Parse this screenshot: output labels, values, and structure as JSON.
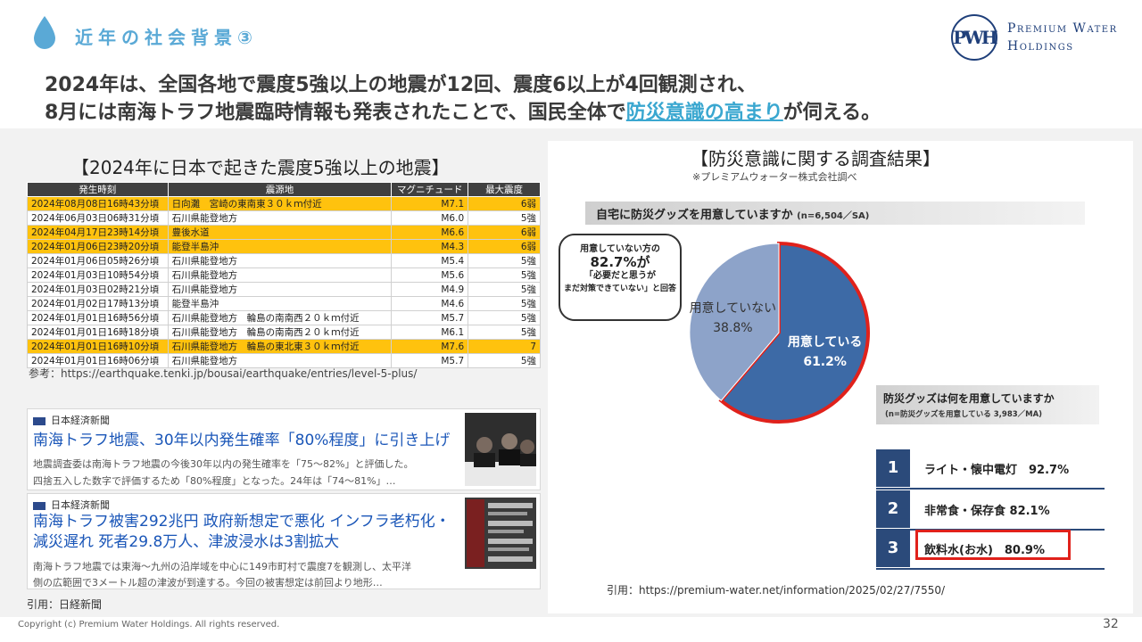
{
  "header": {
    "section_title": "近年の社会背景③",
    "logo_mark": "PWH",
    "logo_line1": "Premium Water",
    "logo_line2": "Holdings",
    "headline_line1": "2024年は、全国各地で震度5強以上の地震が12回、震度6以上が4回観測され、",
    "headline_line2_pre": "8月には南海トラフ地震臨時情報も発表されたことで、国民全体で",
    "headline_line2_hl": "防災意識の高まり",
    "headline_line2_post": "が伺える。"
  },
  "earthquakes": {
    "title": "【2024年に日本で起きた震度5強以上の地震】",
    "columns": [
      "発生時刻",
      "震源地",
      "マグニチュード",
      "最大震度"
    ],
    "rows": [
      {
        "time": "2024年08月08日16時43分頃",
        "epicenter": "日向灘　宮崎の東南東３０ｋｍ付近",
        "mag": "M7.1",
        "int": "6弱",
        "hl": true
      },
      {
        "time": "2024年06月03日06時31分頃",
        "epicenter": "石川県能登地方",
        "mag": "M6.0",
        "int": "5強",
        "hl": false
      },
      {
        "time": "2024年04月17日23時14分頃",
        "epicenter": "豊後水道",
        "mag": "M6.6",
        "int": "6弱",
        "hl": true
      },
      {
        "time": "2024年01月06日23時20分頃",
        "epicenter": "能登半島沖",
        "mag": "M4.3",
        "int": "6弱",
        "hl": true
      },
      {
        "time": "2024年01月06日05時26分頃",
        "epicenter": "石川県能登地方",
        "mag": "M5.4",
        "int": "5強",
        "hl": false
      },
      {
        "time": "2024年01月03日10時54分頃",
        "epicenter": "石川県能登地方",
        "mag": "M5.6",
        "int": "5強",
        "hl": false
      },
      {
        "time": "2024年01月03日02時21分頃",
        "epicenter": "石川県能登地方",
        "mag": "M4.9",
        "int": "5強",
        "hl": false
      },
      {
        "time": "2024年01月02日17時13分頃",
        "epicenter": "能登半島沖",
        "mag": "M4.6",
        "int": "5強",
        "hl": false
      },
      {
        "time": "2024年01月01日16時56分頃",
        "epicenter": "石川県能登地方　輪島の南南西２０ｋｍ付近",
        "mag": "M5.7",
        "int": "5強",
        "hl": false
      },
      {
        "time": "2024年01月01日16時18分頃",
        "epicenter": "石川県能登地方　輪島の南南西２０ｋｍ付近",
        "mag": "M6.1",
        "int": "5強",
        "hl": false
      },
      {
        "time": "2024年01月01日16時10分頃",
        "epicenter": "石川県能登地方　輪島の東北東３０ｋｍ付近",
        "mag": "M7.6",
        "int": "7",
        "hl": true
      },
      {
        "time": "2024年01月01日16時06分頃",
        "epicenter": "石川県能登地方",
        "mag": "M5.7",
        "int": "5強",
        "hl": false
      }
    ],
    "reference": "参考：https://earthquake.tenki.jp/bousai/earthquake/entries/level-5-plus/"
  },
  "news": {
    "card1": {
      "source": "日本経済新聞",
      "title": "南海トラフ地震、30年以内発生確率「80%程度」に引き上げ",
      "body1": "地震調査委は南海トラフ地震の今後30年以内の発生確率を「75～82%」と評価した。",
      "body2": "四捨五入した数字で評価するため「80%程度」となった。24年は「74～81%」…"
    },
    "card2": {
      "source": "日本経済新聞",
      "title1": "南海トラフ被害292兆円 政府新想定で悪化 インフラ老朽化・",
      "title2": "減災遅れ 死者29.8万人、津波浸水は3割拡大",
      "body1": "南海トラフ地震では東海～九州の沿岸域を中心に149市町村で震度7を観測し、太平洋",
      "body2": "側の広範囲で3メートル超の津波が到達する。今回の被害想定は前回より地形…"
    },
    "reference": "引用：日経新聞"
  },
  "survey": {
    "title": "【防災意識に関する調査結果】",
    "note": "※プレミアムウォーター株式会社調べ",
    "question": "自宅に防災グッズを用意していますか",
    "question_n": "(n=6,504／SA)",
    "bubble_line1": "用意していない方の",
    "bubble_line2": "82.7%が",
    "bubble_line3": "「必要だと思うが",
    "bubble_line4": "まだ対策できていない」と回答",
    "question2": "防災グッズは何を用意していますか",
    "question2_n": "(n=防災グッズを用意している 3,983／MA)",
    "ranking": [
      {
        "rank": "1",
        "label": "ライト・懐中電灯　92.7%"
      },
      {
        "rank": "2",
        "label": "非常食・保存食 82.1%"
      },
      {
        "rank": "3",
        "label": "飲料水(お水)　80.9%"
      }
    ],
    "reference": "引用：https://premium-water.net/information/2025/02/27/7550/"
  },
  "chart_data": {
    "type": "pie",
    "slices": [
      {
        "label": "用意している",
        "value": 61.2,
        "display": "61.2%",
        "color": "#3d6aa6"
      },
      {
        "label": "用意していない",
        "value": 38.8,
        "display": "38.8%",
        "color": "#8da3c9"
      }
    ],
    "highlight_slice": "用意している",
    "highlight_color": "#e0211b"
  },
  "footer": {
    "copyright": "Copyright (c) Premium Water Holdings. All rights reserved.",
    "page": "32"
  },
  "colors": {
    "accent": "#5aa9d6",
    "highlight_row": "#ffc20e",
    "navy": "#1f3f7a"
  }
}
